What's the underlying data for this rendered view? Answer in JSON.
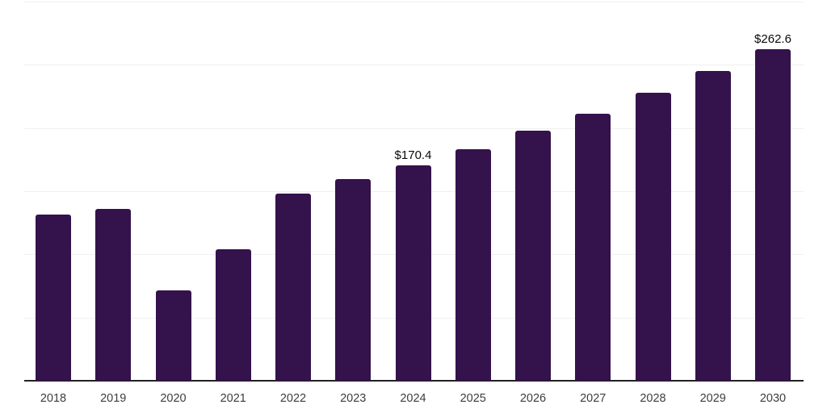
{
  "chart_data": {
    "type": "bar",
    "categories": [
      "2018",
      "2019",
      "2020",
      "2021",
      "2022",
      "2023",
      "2024",
      "2025",
      "2026",
      "2027",
      "2028",
      "2029",
      "2030"
    ],
    "values": [
      131.5,
      136.0,
      71.5,
      104.0,
      148.0,
      159.5,
      170.4,
      183.5,
      198.0,
      211.5,
      228.0,
      245.0,
      262.6
    ],
    "data_labels": [
      {
        "category": "2024",
        "text": "$170.4"
      },
      {
        "category": "2030",
        "text": "$262.6"
      }
    ],
    "title": "",
    "xlabel": "",
    "ylabel": "",
    "ylim": [
      0,
      300
    ],
    "gridline_step": 50,
    "grid": "horizontal",
    "y_tick_labels_visible": false,
    "legend": "none",
    "colors": {
      "bar": "#34124c",
      "gridline": "#f0f0f0",
      "axis": "#212121",
      "tick_label": "#3d3d3d",
      "data_label": "#0a0a0a",
      "background": "#ffffff"
    }
  }
}
